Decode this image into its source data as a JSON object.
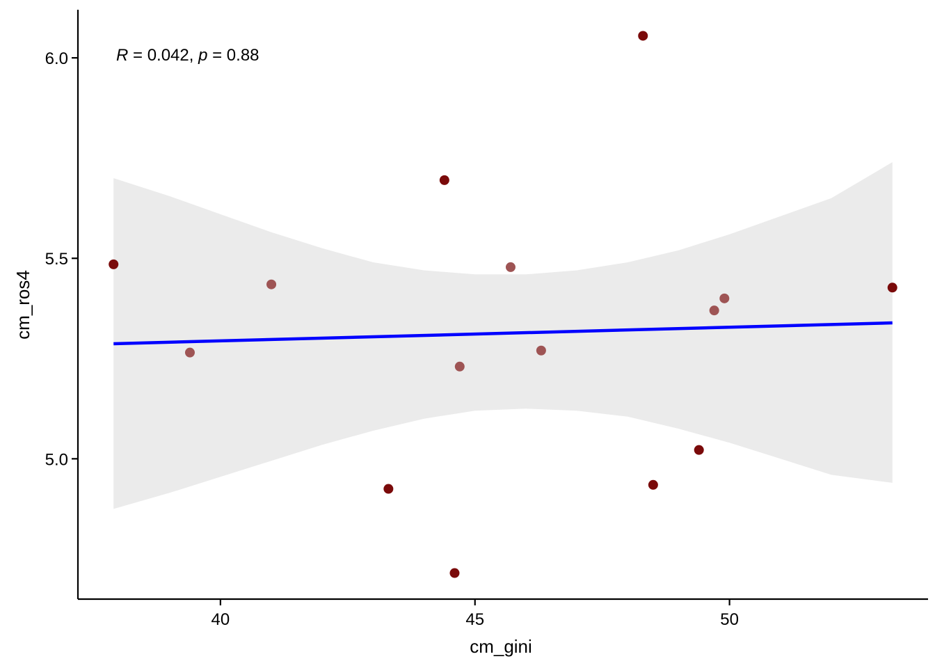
{
  "chart_data": {
    "type": "scatter",
    "xlabel": "cm_gini",
    "ylabel": "cm_ros4",
    "xlim": [
      37.2,
      53.9
    ],
    "ylim": [
      4.65,
      6.12
    ],
    "x_ticks": [
      40,
      45,
      50
    ],
    "y_ticks": [
      5.0,
      5.5,
      6.0
    ],
    "x_tick_labels": [
      "40",
      "45",
      "50"
    ],
    "y_tick_labels": [
      "5.0",
      "5.5",
      "6.0"
    ],
    "grid": false,
    "annotation": {
      "r_symbol": "R",
      "r_text": " = 0.042, ",
      "p_symbol": "p",
      "p_text": " = 0.88"
    },
    "regression": {
      "x": [
        37.9,
        53.2
      ],
      "y": [
        5.287,
        5.339
      ],
      "color": "#0000ff"
    },
    "confidence_band": {
      "x": [
        37.9,
        39.0,
        40.0,
        41.0,
        42.0,
        43.0,
        44.0,
        45.0,
        46.0,
        47.0,
        48.0,
        49.0,
        50.0,
        51.0,
        52.0,
        53.2
      ],
      "upper": [
        5.7,
        5.655,
        5.61,
        5.565,
        5.525,
        5.49,
        5.47,
        5.46,
        5.46,
        5.47,
        5.49,
        5.52,
        5.56,
        5.605,
        5.65,
        5.74
      ],
      "lower": [
        4.875,
        4.915,
        4.955,
        4.995,
        5.035,
        5.07,
        5.1,
        5.12,
        5.125,
        5.12,
        5.105,
        5.075,
        5.04,
        5.0,
        4.96,
        4.94
      ],
      "color": "#ebebeb"
    },
    "points": [
      {
        "x": 37.9,
        "y": 5.485,
        "color": "#7a0a0a"
      },
      {
        "x": 39.4,
        "y": 5.265,
        "color": "#9e5454"
      },
      {
        "x": 41.0,
        "y": 5.435,
        "color": "#9e5454"
      },
      {
        "x": 43.3,
        "y": 4.925,
        "color": "#7a0a0a"
      },
      {
        "x": 44.4,
        "y": 5.695,
        "color": "#7a0a0a"
      },
      {
        "x": 44.6,
        "y": 4.715,
        "color": "#7a0a0a"
      },
      {
        "x": 44.7,
        "y": 5.23,
        "color": "#9e5454"
      },
      {
        "x": 45.7,
        "y": 5.478,
        "color": "#9e5454"
      },
      {
        "x": 46.3,
        "y": 5.27,
        "color": "#9e5454"
      },
      {
        "x": 48.3,
        "y": 6.055,
        "color": "#7a0a0a"
      },
      {
        "x": 48.5,
        "y": 4.935,
        "color": "#7a0a0a"
      },
      {
        "x": 49.4,
        "y": 5.022,
        "color": "#7a0a0a"
      },
      {
        "x": 49.7,
        "y": 5.37,
        "color": "#9e5454"
      },
      {
        "x": 49.9,
        "y": 5.4,
        "color": "#9e5454"
      },
      {
        "x": 53.2,
        "y": 5.427,
        "color": "#7a0a0a"
      }
    ]
  }
}
